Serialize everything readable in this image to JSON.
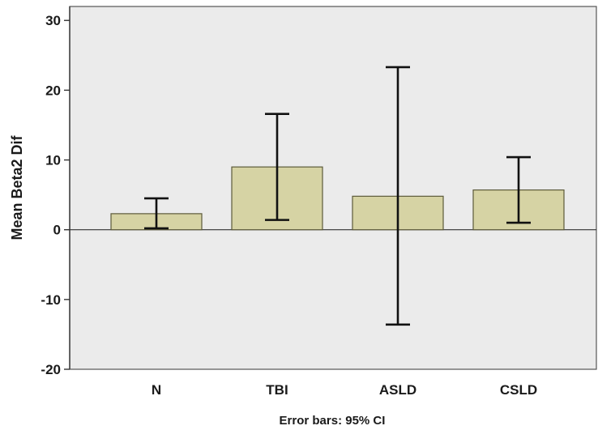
{
  "chart_data": {
    "type": "bar",
    "categories": [
      "N",
      "TBI",
      "ASLD",
      "CSLD"
    ],
    "values": [
      2.3,
      9.0,
      4.8,
      5.7
    ],
    "error_bars": [
      {
        "low": 0.2,
        "high": 4.5
      },
      {
        "low": 1.4,
        "high": 16.6
      },
      {
        "low": -13.6,
        "high": 23.3
      },
      {
        "low": 1.0,
        "high": 10.4
      }
    ],
    "title": "",
    "xlabel": "",
    "ylabel": "Mean Beta2 Dif",
    "ylim": [
      -20,
      32
    ],
    "yticks": [
      -20,
      -10,
      0,
      10,
      20,
      30
    ],
    "note": "Error bars: 95% CI",
    "bar_color": "#d6d3a4",
    "bar_border_color": "#5c5a3a",
    "plot_background": "#ebebeb",
    "grid": false,
    "legend": "none"
  }
}
